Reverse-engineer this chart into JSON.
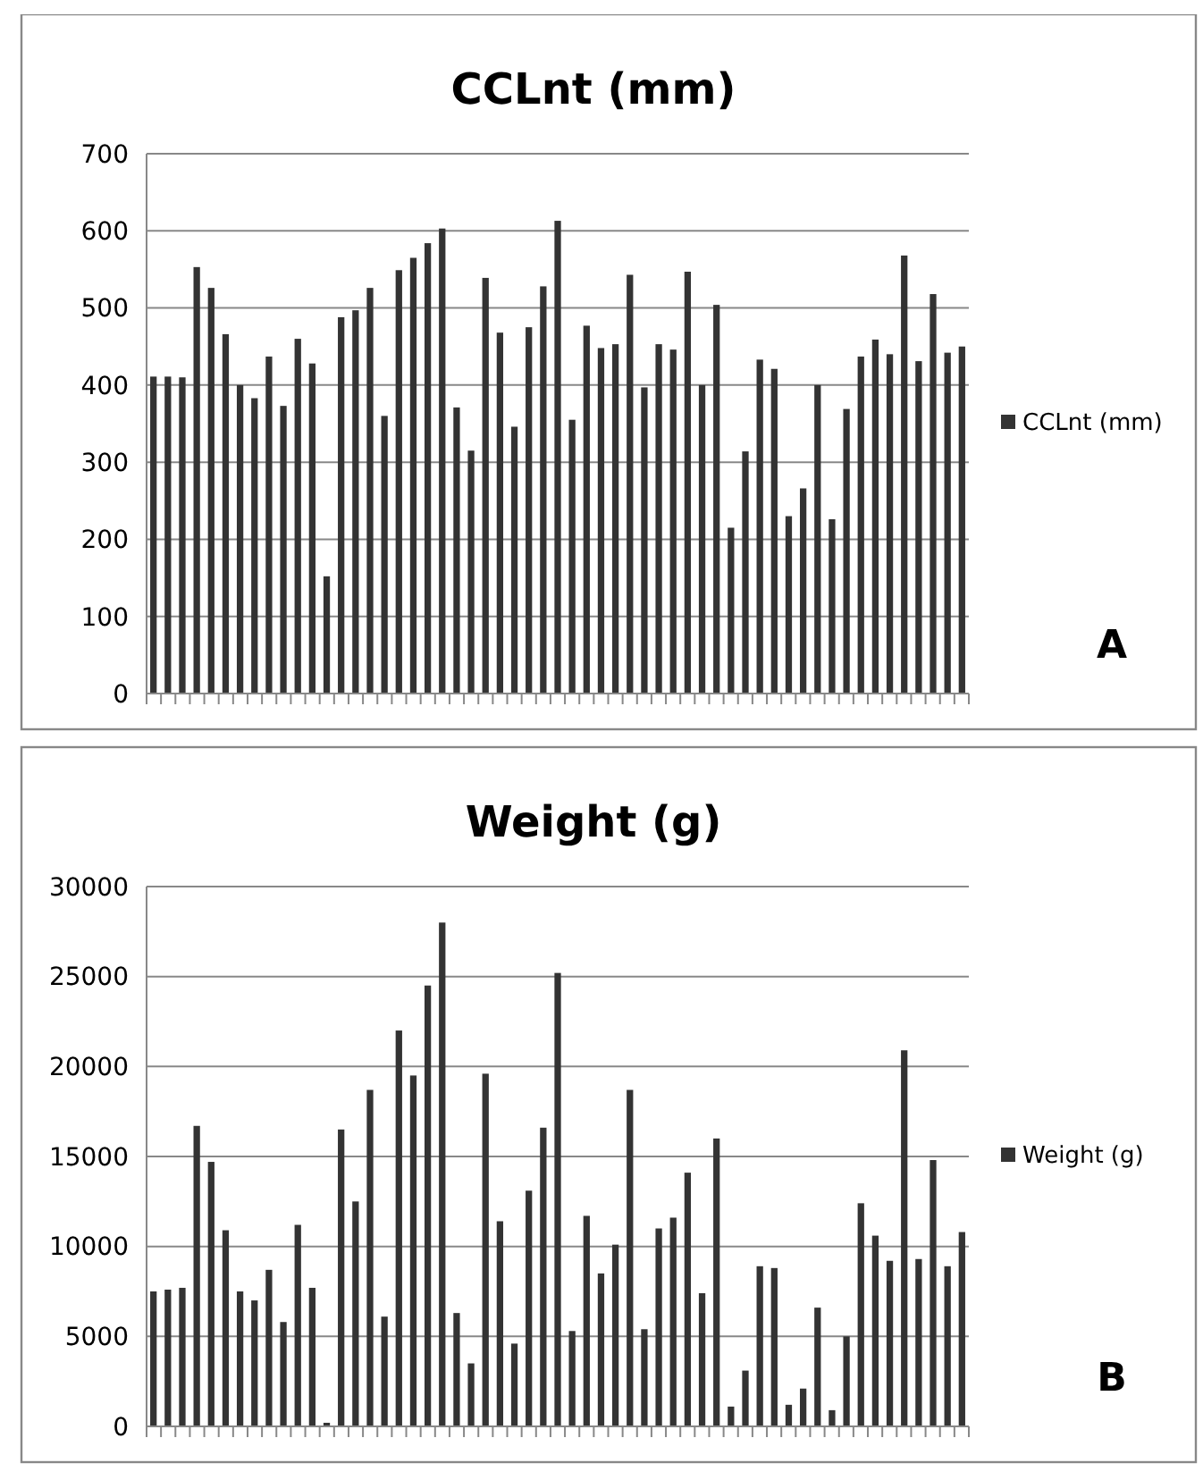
{
  "chart_data": [
    {
      "type": "bar",
      "title": "CCLnt (mm)",
      "categories": [
        null,
        null,
        null,
        null,
        null,
        null,
        null,
        null,
        null,
        null,
        null,
        null,
        null,
        null,
        null,
        null,
        null,
        null,
        null,
        null,
        null,
        null,
        null,
        null,
        null,
        null,
        null,
        null,
        null,
        null,
        null,
        null,
        null,
        null,
        null,
        null,
        null,
        null,
        null,
        null,
        null,
        null,
        null,
        null,
        null,
        null,
        null,
        null,
        null,
        null,
        null,
        null,
        null,
        null,
        null,
        null,
        null
      ],
      "series": [
        {
          "name": "CCLnt (mm)",
          "color": "#333333",
          "values": [
            411,
            411,
            410,
            553,
            526,
            466,
            400,
            383,
            437,
            373,
            460,
            428,
            152,
            488,
            497,
            526,
            360,
            549,
            565,
            584,
            603,
            371,
            315,
            539,
            468,
            346,
            475,
            528,
            613,
            355,
            477,
            448,
            453,
            543,
            397,
            453,
            446,
            547,
            400,
            504,
            215,
            314,
            433,
            421,
            230,
            266,
            400,
            226,
            369,
            437,
            459,
            440,
            568,
            431,
            518,
            442,
            450
          ]
        }
      ],
      "ylim": [
        0,
        700
      ],
      "yticks": [
        0,
        100,
        200,
        300,
        400,
        500,
        600,
        700
      ],
      "grid": "y",
      "legend": "right",
      "annotations": [
        "A"
      ]
    },
    {
      "type": "bar",
      "title": "Weight (g)",
      "categories": [
        null,
        null,
        null,
        null,
        null,
        null,
        null,
        null,
        null,
        null,
        null,
        null,
        null,
        null,
        null,
        null,
        null,
        null,
        null,
        null,
        null,
        null,
        null,
        null,
        null,
        null,
        null,
        null,
        null,
        null,
        null,
        null,
        null,
        null,
        null,
        null,
        null,
        null,
        null,
        null,
        null,
        null,
        null,
        null,
        null,
        null,
        null,
        null,
        null,
        null,
        null,
        null,
        null,
        null,
        null,
        null,
        null
      ],
      "series": [
        {
          "name": "Weight (g)",
          "color": "#333333",
          "values": [
            7500,
            7600,
            7700,
            16700,
            14700,
            10900,
            7500,
            7000,
            8700,
            5800,
            11200,
            7700,
            200,
            16500,
            12500,
            18700,
            6100,
            22000,
            19500,
            24500,
            28000,
            6300,
            3500,
            19600,
            11400,
            4600,
            13100,
            16600,
            25200,
            5300,
            11700,
            8500,
            10100,
            18700,
            5400,
            11000,
            11600,
            14100,
            7400,
            16000,
            1100,
            3100,
            8900,
            8800,
            1200,
            2100,
            6600,
            900,
            5000,
            12400,
            10600,
            9200,
            20900,
            9300,
            14800,
            8900,
            10800
          ]
        }
      ],
      "ylim": [
        0,
        30000
      ],
      "yticks": [
        0,
        5000,
        10000,
        15000,
        20000,
        25000,
        30000
      ],
      "grid": "y",
      "legend": "right",
      "annotations": [
        "B"
      ]
    }
  ]
}
